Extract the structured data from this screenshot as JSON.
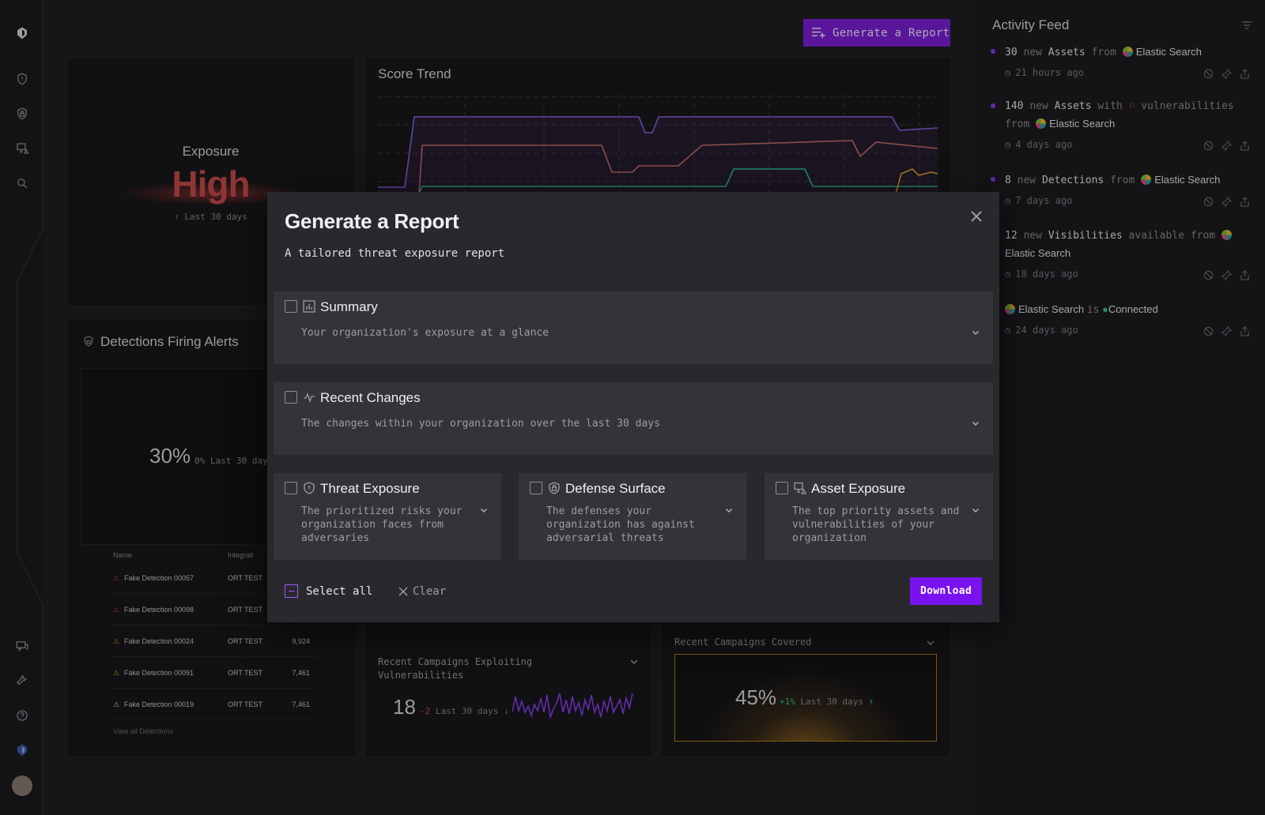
{
  "header": {
    "generate_report_label": "Generate a Report"
  },
  "exposure": {
    "label": "Exposure",
    "value": "High",
    "period": "Last 30 days"
  },
  "score_trend": {
    "title": "Score Trend"
  },
  "detections": {
    "title": "Detections Firing Alerts",
    "percent": "30%",
    "delta": "0%",
    "period": "Last 30 days",
    "columns": [
      "Name",
      "Integrati"
    ],
    "rows": [
      {
        "name": "Fake Detection 00057",
        "integration": "ORT TEST",
        "count": ""
      },
      {
        "name": "Fake Detection 00098",
        "integration": "ORT TEST",
        "count": ""
      },
      {
        "name": "Fake Detection 00024",
        "integration": "ORT TEST",
        "count": "9,924"
      },
      {
        "name": "Fake Detection 00091",
        "integration": "ORT TEST",
        "count": "7,461"
      },
      {
        "name": "Fake Detection 00019",
        "integration": "ORT TEST",
        "count": "7,461"
      }
    ],
    "view_all": "View all Detections"
  },
  "campaigns_exploiting": {
    "title": "Recent Campaigns Exploiting Vulnerabilities",
    "value": "18",
    "delta": "-2",
    "period": "Last 30 days"
  },
  "campaigns_covered": {
    "title": "Recent Campaigns Covered",
    "value": "45%",
    "delta": "+1%",
    "period": "Last 30 days"
  },
  "feed": {
    "title": "Activity Feed",
    "items": [
      {
        "count": "30",
        "w1": "new",
        "entity": "Assets",
        "w2": "from",
        "source": "Elastic Search",
        "time": "21 hours ago"
      },
      {
        "count": "140",
        "w1": "new",
        "entity": "Assets",
        "w2": "with",
        "w3": "vulnerabilities from",
        "source": "Elastic Search",
        "time": "4 days ago"
      },
      {
        "count": "8",
        "w1": "new",
        "entity": "Detections",
        "w2": "from",
        "source": "Elastic Search",
        "time": "7 days ago"
      },
      {
        "count": "12",
        "w1": "new",
        "entity": "Visibilities",
        "w2": "available from",
        "source": "Elastic Search",
        "time": "18 days ago"
      },
      {
        "source": "Elastic Search",
        "w1": "is",
        "status": "Connected",
        "time": "24 days ago"
      }
    ]
  },
  "modal": {
    "title": "Generate a Report",
    "subtitle": "A tailored threat exposure report",
    "sections": [
      {
        "title": "Summary",
        "desc": "Your organization's exposure at a glance",
        "icon": "bar-chart-icon"
      },
      {
        "title": "Recent Changes",
        "desc": "The changes within your organization over the last 30 days",
        "icon": "activity-icon"
      },
      {
        "title": "Threat Exposure",
        "desc": "The prioritized risks your organization faces from adversaries",
        "icon": "shield-alert-icon"
      },
      {
        "title": "Defense Surface",
        "desc": "The defenses your organization has against adversarial threats",
        "icon": "shield-lock-icon"
      },
      {
        "title": "Asset Exposure",
        "desc": "The top priority assets and vulnerabilities of your organization",
        "icon": "monitor-alert-icon"
      }
    ],
    "select_all": "Select all",
    "clear": "Clear",
    "download": "Download"
  },
  "colors": {
    "accent": "#7a12f0",
    "danger": "#c74a4a",
    "success": "#2fbf8a",
    "warning": "#e0a030"
  }
}
